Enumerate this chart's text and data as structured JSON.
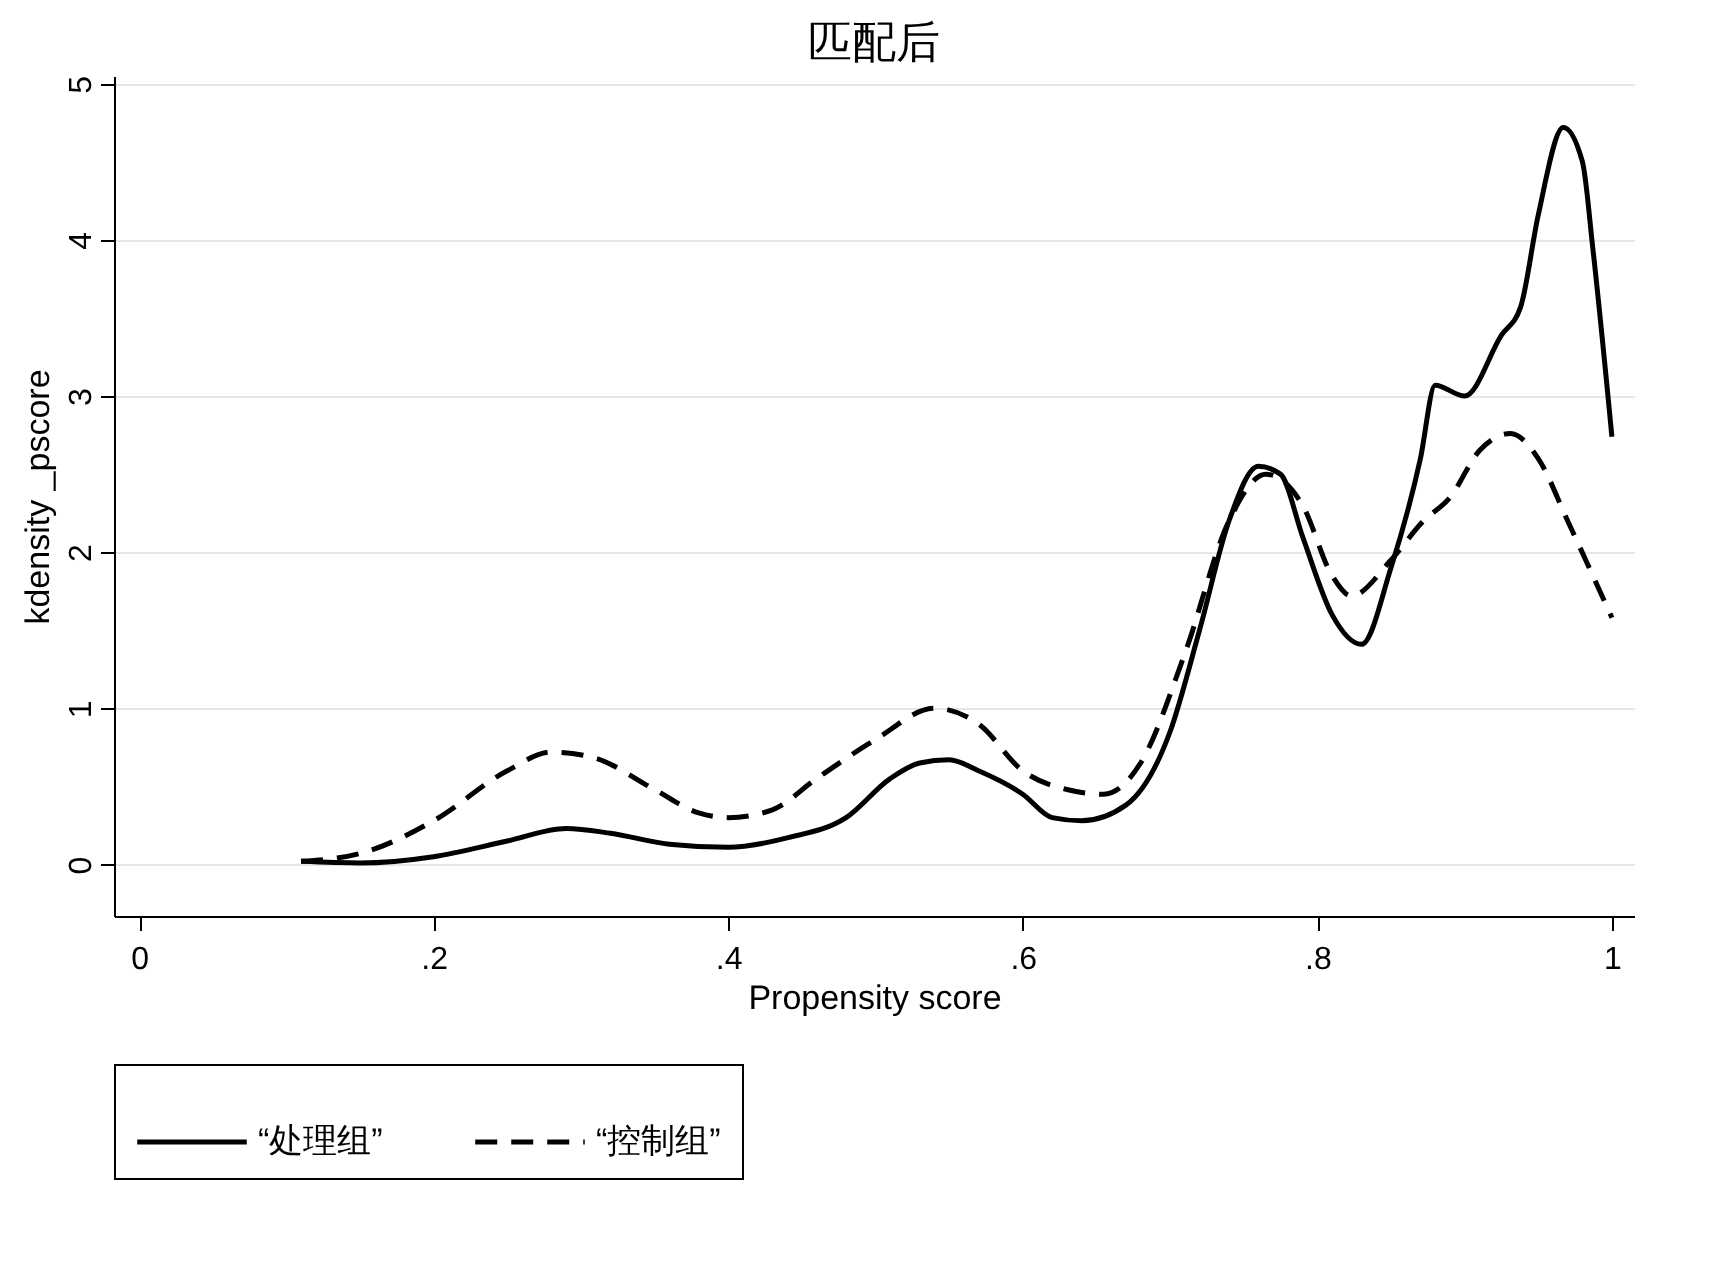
{
  "chart_data": {
    "type": "line",
    "title": "匹配后",
    "xlabel": "Propensity score",
    "ylabel": "kdensity _pscore",
    "xlim": [
      -0.017,
      1.015
    ],
    "ylim": [
      -0.33,
      5.05
    ],
    "xticks": [
      0,
      {
        "value": 0.2,
        "label": ".2"
      },
      {
        "value": 0.4,
        "label": ".4"
      },
      {
        "value": 0.6,
        "label": ".6"
      },
      {
        "value": 0.8,
        "label": ".8"
      },
      1
    ],
    "yticks": [
      0,
      1,
      2,
      3,
      4,
      5
    ],
    "grid": "y",
    "legend": "bottom",
    "series": [
      {
        "name": "“处理组”",
        "color": "#000000",
        "line_style": "solid",
        "x": [
          0.11,
          0.15,
          0.2,
          0.25,
          0.29,
          0.32,
          0.36,
          0.4,
          0.44,
          0.48,
          0.51,
          0.53,
          0.55,
          0.57,
          0.6,
          0.62,
          0.64,
          0.67,
          0.7,
          0.72,
          0.74,
          0.76,
          0.775,
          0.79,
          0.81,
          0.83,
          0.85,
          0.87,
          0.88,
          0.9,
          0.925,
          0.938,
          0.95,
          0.967,
          0.98,
          0.987,
          1.0
        ],
        "values": [
          0.02,
          0.01,
          0.05,
          0.15,
          0.23,
          0.2,
          0.13,
          0.11,
          0.17,
          0.3,
          0.55,
          0.65,
          0.67,
          0.6,
          0.45,
          0.3,
          0.28,
          0.38,
          0.85,
          1.5,
          2.2,
          2.55,
          2.5,
          2.1,
          1.6,
          1.41,
          1.9,
          2.6,
          3.07,
          3.0,
          3.39,
          3.57,
          4.16,
          4.72,
          4.5,
          3.95,
          2.74
        ]
      },
      {
        "name": "“控制组”",
        "color": "#000000",
        "line_style": "dashed",
        "x": [
          0.11,
          0.15,
          0.2,
          0.25,
          0.28,
          0.31,
          0.35,
          0.38,
          0.4,
          0.43,
          0.46,
          0.5,
          0.54,
          0.57,
          0.6,
          0.63,
          0.655,
          0.68,
          0.71,
          0.74,
          0.765,
          0.79,
          0.81,
          0.823,
          0.85,
          0.872,
          0.89,
          0.91,
          0.931,
          0.95,
          0.97,
          1.0
        ],
        "values": [
          0.02,
          0.07,
          0.28,
          0.6,
          0.72,
          0.68,
          0.48,
          0.33,
          0.3,
          0.35,
          0.55,
          0.8,
          1.0,
          0.9,
          0.6,
          0.48,
          0.45,
          0.65,
          1.35,
          2.2,
          2.5,
          2.3,
          1.85,
          1.72,
          1.95,
          2.2,
          2.35,
          2.65,
          2.76,
          2.6,
          2.2,
          1.58
        ]
      }
    ]
  }
}
